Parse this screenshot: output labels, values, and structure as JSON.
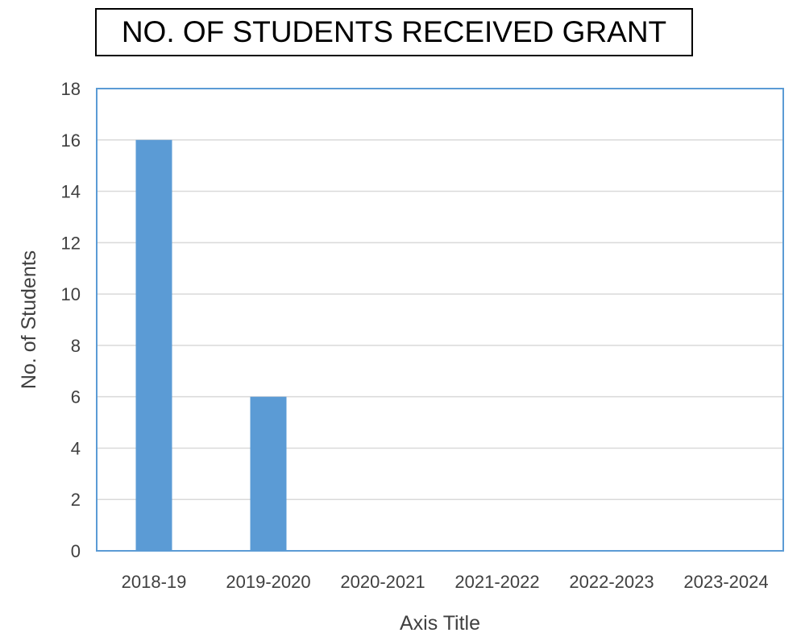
{
  "chart_data": {
    "type": "bar",
    "title": "NO. OF STUDENTS RECEIVED GRANT",
    "xlabel": "Axis Title",
    "ylabel": "No. of Students",
    "categories": [
      "2018-19",
      "2019-2020",
      "2020-2021",
      "2021-2022",
      "2022-2023",
      "2023-2024"
    ],
    "series": [
      {
        "values": [
          16,
          6,
          0,
          0,
          0,
          0
        ]
      }
    ],
    "ylim": [
      0,
      18
    ],
    "yticks": [
      0,
      2,
      4,
      6,
      8,
      10,
      12,
      14,
      16,
      18
    ],
    "grid": true,
    "legend": "none",
    "colors": {
      "bar": "#5b9bd5",
      "frame": "#5b9bd5",
      "grid": "#d9d9d9",
      "text": "#404040"
    }
  }
}
